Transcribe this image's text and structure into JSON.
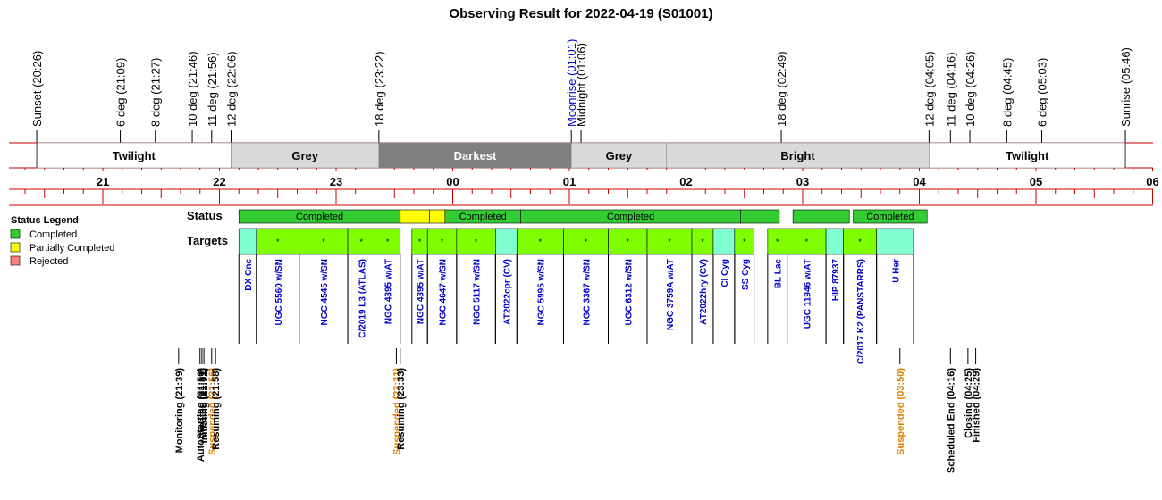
{
  "title": "Observing Result for 2022-04-19 (S01001)",
  "colors": {
    "axis_red": "#cc0000",
    "completed": "#33cc33",
    "partial": "#ffff00",
    "rejected": "#ff7f7f",
    "target_done": "#80ff00",
    "target_cal": "#80ffd0",
    "target_text": "#0000cc",
    "moon_text": "#0000cc",
    "suspended_text": "#e08000",
    "twilight": "#ffffff",
    "grey": "#d9d9d9",
    "darkest": "#7f7f7f",
    "bright": "#d9d9d9"
  },
  "events": [
    {
      "label": "Sunset (20:26)",
      "time": "20:26",
      "color": "black"
    },
    {
      "label": "6 deg (21:09)",
      "time": "21:09",
      "color": "black"
    },
    {
      "label": "8 deg (21:27)",
      "time": "21:27",
      "color": "black"
    },
    {
      "label": "10 deg (21:46)",
      "time": "21:46",
      "color": "black"
    },
    {
      "label": "11 deg (21:56)",
      "time": "21:56",
      "color": "black"
    },
    {
      "label": "12 deg (22:06)",
      "time": "22:06",
      "color": "black"
    },
    {
      "label": "18 deg (23:22)",
      "time": "23:22",
      "color": "black"
    },
    {
      "label": "Moonrise (01:01)",
      "time": "01:01",
      "color": "moon"
    },
    {
      "label": "Midnight (01:06)",
      "time": "01:06",
      "color": "black"
    },
    {
      "label": "18 deg (02:49)",
      "time": "02:49",
      "color": "black"
    },
    {
      "label": "12 deg (04:05)",
      "time": "04:05",
      "color": "black"
    },
    {
      "label": "11 deg (04:16)",
      "time": "04:16",
      "color": "black"
    },
    {
      "label": "10 deg (04:26)",
      "time": "04:26",
      "color": "black"
    },
    {
      "label": "8 deg (04:45)",
      "time": "04:45",
      "color": "black"
    },
    {
      "label": "6 deg (05:03)",
      "time": "05:03",
      "color": "black"
    },
    {
      "label": "Sunrise (05:46)",
      "time": "05:46",
      "color": "black"
    }
  ],
  "bands": [
    {
      "label": "Twilight",
      "start": "20:26",
      "end": "22:06",
      "shade": "twilight"
    },
    {
      "label": "Grey",
      "start": "22:06",
      "end": "23:22",
      "shade": "grey"
    },
    {
      "label": "Darkest",
      "start": "23:22",
      "end": "01:01",
      "shade": "darkest"
    },
    {
      "label": "Grey",
      "start": "01:01",
      "end": "01:50",
      "shade": "grey"
    },
    {
      "label": "Bright",
      "start": "01:50",
      "end": "04:05",
      "shade": "bright"
    },
    {
      "label": "Twilight",
      "start": "04:05",
      "end": "05:46",
      "shade": "twilight"
    }
  ],
  "hour_ticks": [
    "21",
    "22",
    "23",
    "00",
    "01",
    "02",
    "03",
    "04",
    "05",
    "06"
  ],
  "legend": {
    "title": "Status Legend",
    "items": [
      {
        "label": "Completed",
        "color": "completed"
      },
      {
        "label": "Partially Completed",
        "color": "partial"
      },
      {
        "label": "Rejected",
        "color": "rejected"
      }
    ]
  },
  "row_labels": {
    "status": "Status",
    "targets": "Targets"
  },
  "status_blocks": [
    {
      "start": "22:10",
      "end": "23:33",
      "kind": "completed",
      "label": "Completed"
    },
    {
      "start": "23:33",
      "end": "23:48",
      "kind": "partial",
      "label": ""
    },
    {
      "start": "23:48",
      "end": "23:56",
      "kind": "partial",
      "label": ""
    },
    {
      "start": "23:56",
      "end": "00:35",
      "kind": "completed",
      "label": "Completed"
    },
    {
      "start": "00:35",
      "end": "02:28",
      "kind": "completed",
      "label": "Completed"
    },
    {
      "start": "02:28",
      "end": "02:48",
      "kind": "completed",
      "label": ""
    },
    {
      "start": "02:55",
      "end": "03:24",
      "kind": "completed",
      "label": ""
    },
    {
      "start": "03:26",
      "end": "04:04",
      "kind": "completed",
      "label": "Completed"
    }
  ],
  "targets": [
    {
      "name": "DX Cnc",
      "start": "22:10",
      "end": "22:19",
      "kind": "cal",
      "mark": ""
    },
    {
      "name": "UGC 5560 w/SN",
      "start": "22:19",
      "end": "22:41",
      "kind": "done",
      "mark": "*"
    },
    {
      "name": "NGC 4545 w/SN",
      "start": "22:41",
      "end": "23:06",
      "kind": "done",
      "mark": "*"
    },
    {
      "name": "C/2019 L3 (ATLAS)",
      "start": "23:06",
      "end": "23:20",
      "kind": "done",
      "mark": "*"
    },
    {
      "name": "NGC 4395 w/AT",
      "start": "23:20",
      "end": "23:33",
      "kind": "done",
      "mark": "*"
    },
    {
      "name": "NGC 4395 w/AT",
      "start": "23:39",
      "end": "23:47",
      "kind": "done",
      "mark": "*"
    },
    {
      "name": "NGC 4647 w/SN",
      "start": "23:47",
      "end": "00:02",
      "kind": "done",
      "mark": "*"
    },
    {
      "name": "NGC 5117 w/SN",
      "start": "00:02",
      "end": "00:22",
      "kind": "done",
      "mark": "*"
    },
    {
      "name": "AT2022cpr (CV)",
      "start": "00:22",
      "end": "00:33",
      "kind": "cal",
      "mark": ""
    },
    {
      "name": "NGC 5995 w/SN",
      "start": "00:33",
      "end": "00:57",
      "kind": "done",
      "mark": "*"
    },
    {
      "name": "NGC 3367 w/SN",
      "start": "00:57",
      "end": "01:20",
      "kind": "done",
      "mark": "*"
    },
    {
      "name": "UGC 6312 w/SN",
      "start": "01:20",
      "end": "01:40",
      "kind": "done",
      "mark": "*"
    },
    {
      "name": "NGC 3759A w/AT",
      "start": "01:40",
      "end": "02:03",
      "kind": "done",
      "mark": "*"
    },
    {
      "name": "AT2022hry (CV)",
      "start": "02:03",
      "end": "02:14",
      "kind": "done",
      "mark": "*"
    },
    {
      "name": "CI Cyg",
      "start": "02:14",
      "end": "02:25",
      "kind": "cal",
      "mark": ""
    },
    {
      "name": "SS Cyg",
      "start": "02:25",
      "end": "02:35",
      "kind": "done",
      "mark": "*"
    },
    {
      "name": "BL Lac",
      "start": "02:42",
      "end": "02:52",
      "kind": "done",
      "mark": "*"
    },
    {
      "name": "UGC 11946 w/AT",
      "start": "02:52",
      "end": "03:12",
      "kind": "done",
      "mark": "*"
    },
    {
      "name": "HIP 87937",
      "start": "03:12",
      "end": "03:21",
      "kind": "cal",
      "mark": ""
    },
    {
      "name": "C/2017 K2 (PANSTARRS)",
      "start": "03:21",
      "end": "03:38",
      "kind": "done",
      "mark": "*"
    },
    {
      "name": "U Her",
      "start": "03:38",
      "end": "03:57",
      "kind": "cal",
      "mark": ""
    }
  ],
  "log_events": [
    {
      "label": "Monitoring (21:39)",
      "time": "21:39",
      "kind": "normal"
    },
    {
      "label": "AutoStarting (21:50)",
      "time": "21:50",
      "kind": "normal"
    },
    {
      "label": "Created (21:51)",
      "time": "21:51",
      "kind": "normal"
    },
    {
      "label": "Initiating (21:52)",
      "time": "21:52",
      "kind": "normal"
    },
    {
      "label": "Suspended (21:56)",
      "time": "21:56",
      "kind": "suspended"
    },
    {
      "label": "Resuming (21:58)",
      "time": "21:58",
      "kind": "normal"
    },
    {
      "label": "Suspended (23:31)",
      "time": "23:31",
      "kind": "suspended"
    },
    {
      "label": "Resuming (23:33)",
      "time": "23:33",
      "kind": "normal"
    },
    {
      "label": "Suspended (03:50)",
      "time": "03:50",
      "kind": "suspended"
    },
    {
      "label": "Scheduled End (04:16)",
      "time": "04:16",
      "kind": "normal"
    },
    {
      "label": "Closing (04:25)",
      "time": "04:25",
      "kind": "normal"
    },
    {
      "label": "Finished (04:29)",
      "time": "04:29",
      "kind": "normal"
    }
  ],
  "chart_data": {
    "type": "table",
    "title": "Observing Result for 2022-04-19 (S01001)",
    "x_range": [
      "20:10",
      "06:00"
    ],
    "x_ticks": [
      "21",
      "22",
      "23",
      "00",
      "01",
      "02",
      "03",
      "04",
      "05",
      "06"
    ],
    "legend_position": "left"
  }
}
